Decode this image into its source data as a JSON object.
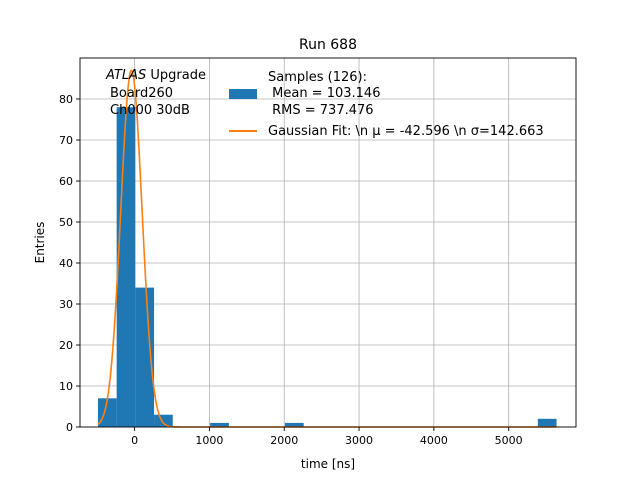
{
  "chart_data": {
    "type": "bar",
    "title": "Run 688",
    "xlabel": "time [ns]",
    "ylabel": "Entries",
    "xlim": [
      -730,
      5900
    ],
    "ylim": [
      0,
      90
    ],
    "xticks": [
      0,
      1000,
      2000,
      3000,
      4000,
      5000
    ],
    "yticks": [
      0,
      10,
      20,
      30,
      40,
      50,
      60,
      70,
      80
    ],
    "grid": true,
    "legend_position": "top-right",
    "annotation": {
      "line1_italic": "ATLAS",
      "line1_rest": " Upgrade",
      "line2": "Board260",
      "line3": "Ch000 30dB"
    },
    "histogram": {
      "label_line1": "Samples (126):",
      "label_line2": " Mean = 103.146",
      "label_line3": " RMS = 737.476",
      "color": "#1f77b4",
      "bins": [
        {
          "x0": -490,
          "x1": -240,
          "count": 7
        },
        {
          "x0": -240,
          "x1": 10,
          "count": 78
        },
        {
          "x0": 10,
          "x1": 260,
          "count": 34
        },
        {
          "x0": 260,
          "x1": 510,
          "count": 3
        },
        {
          "x0": 1010,
          "x1": 1260,
          "count": 1
        },
        {
          "x0": 2010,
          "x1": 2260,
          "count": 1
        },
        {
          "x0": 5390,
          "x1": 5640,
          "count": 2
        }
      ]
    },
    "fit": {
      "label": "Gaussian Fit: \\n μ = -42.596 \\n σ=142.663",
      "mu": -42.596,
      "sigma": 142.663,
      "amplitude": 87,
      "x_range": [
        -490,
        5640
      ],
      "color": "#ff7f0e"
    }
  }
}
